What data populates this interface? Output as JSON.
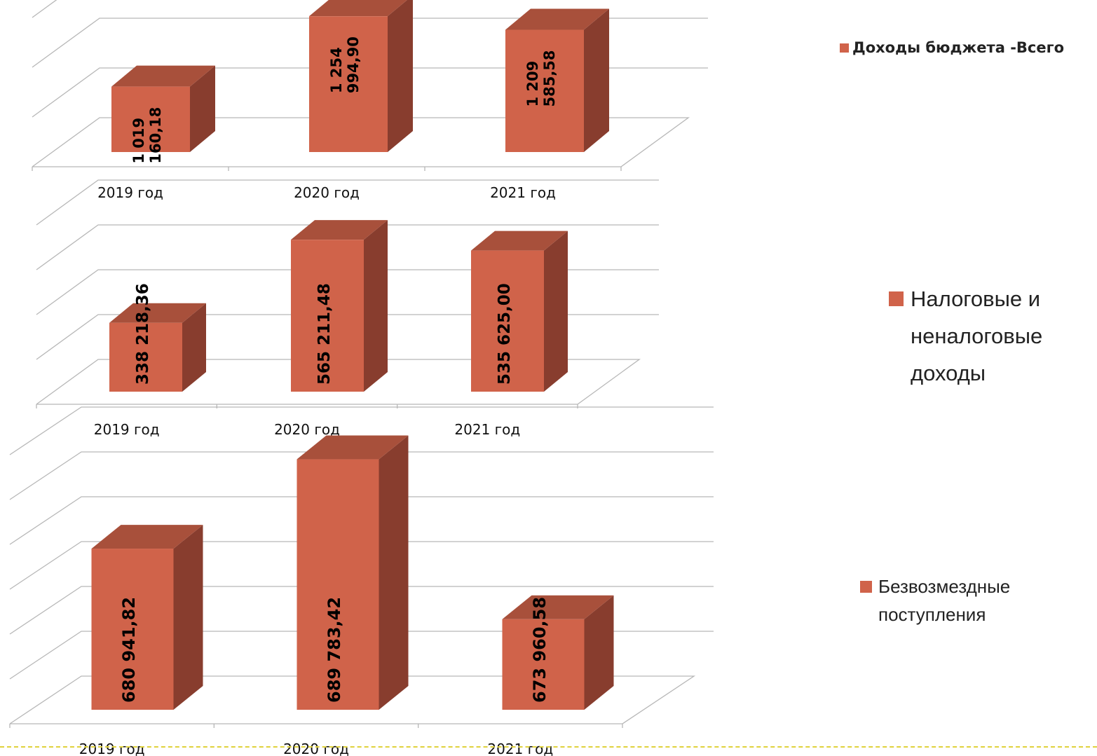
{
  "chart_data": [
    {
      "type": "bar",
      "categories": [
        "2019 год",
        "2020 год",
        "2021 год"
      ],
      "series": [
        {
          "name": "Доходы бюджета -Всего",
          "values": [
            1019160.18,
            1254994.9,
            1209585.58
          ],
          "labels": [
            [
              "1 019",
              "160,18"
            ],
            [
              "1 254",
              "994,90"
            ],
            [
              "1 209",
              "585,58"
            ]
          ]
        }
      ],
      "legend_position": "right",
      "grid": true,
      "bar_color": "#d0634a"
    },
    {
      "type": "bar",
      "categories": [
        "2019 год",
        "2020 год",
        "2021 год"
      ],
      "series": [
        {
          "name": "Налоговые и неналоговые доходы",
          "values": [
            338218.36,
            565211.48,
            535625.0
          ],
          "labels": [
            [
              "338 218,36"
            ],
            [
              "565 211,48"
            ],
            [
              "535 625,00"
            ]
          ]
        }
      ],
      "legend_position": "right",
      "grid": true,
      "bar_color": "#d0634a"
    },
    {
      "type": "bar",
      "categories": [
        "2019 год",
        "2020 год",
        "2021 год"
      ],
      "series": [
        {
          "name": "Безвозмездные поступления",
          "values": [
            680941.82,
            689783.42,
            673960.58
          ],
          "labels": [
            [
              "680 941,82"
            ],
            [
              "689 783,42"
            ],
            [
              "673 960,58"
            ]
          ]
        }
      ],
      "legend_position": "right",
      "grid": true,
      "bar_color": "#d0634a"
    }
  ]
}
